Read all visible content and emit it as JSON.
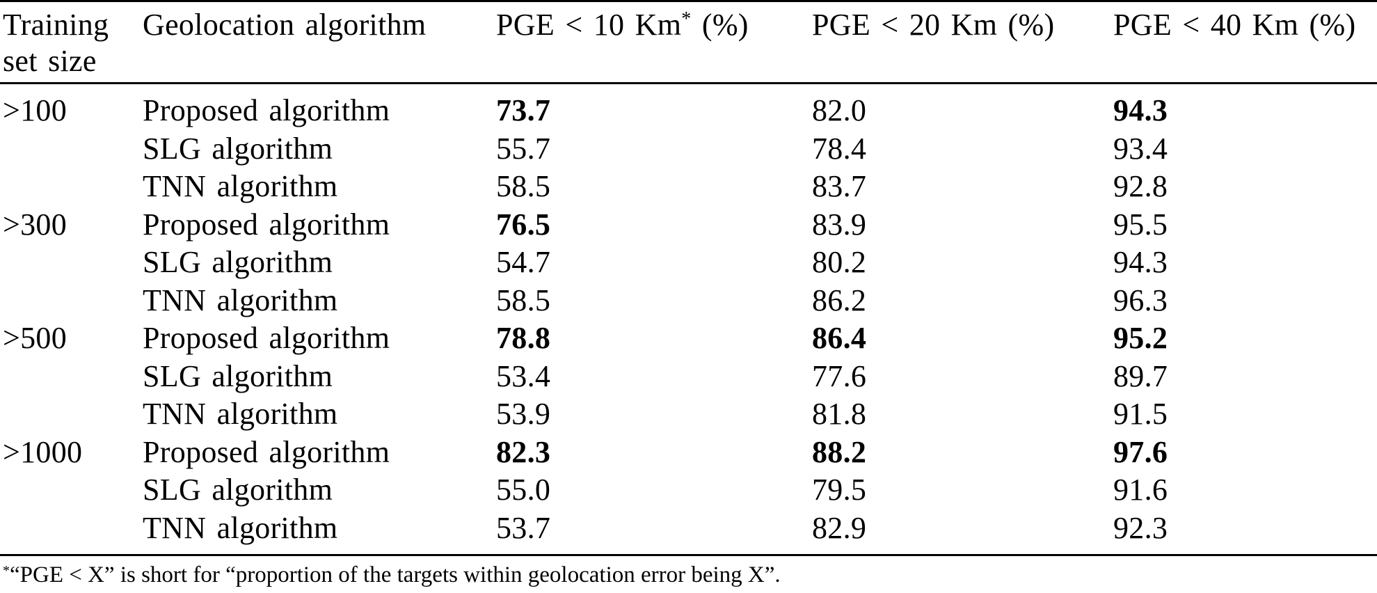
{
  "table": {
    "headers": [
      {
        "lines": [
          "Training",
          "set size"
        ]
      },
      {
        "lines": [
          "Geolocation algorithm"
        ]
      },
      {
        "main": "PGE < 10 Km",
        "sup": "*",
        "tail": " (%)"
      },
      {
        "main": "PGE < 20 Km (%)"
      },
      {
        "main": "PGE < 40 Km (%)"
      }
    ],
    "rows": [
      {
        "size": ">100",
        "algorithm": "Proposed algorithm",
        "v10": "73.7",
        "v20": "82.0",
        "v40": "94.3",
        "bold10": true,
        "bold20": false,
        "bold40": true
      },
      {
        "size": "",
        "algorithm": "SLG algorithm",
        "v10": "55.7",
        "v20": "78.4",
        "v40": "93.4",
        "bold10": false,
        "bold20": false,
        "bold40": false
      },
      {
        "size": "",
        "algorithm": "TNN algorithm",
        "v10": "58.5",
        "v20": "83.7",
        "v40": "92.8",
        "bold10": false,
        "bold20": false,
        "bold40": false
      },
      {
        "size": ">300",
        "algorithm": "Proposed algorithm",
        "v10": "76.5",
        "v20": "83.9",
        "v40": "95.5",
        "bold10": true,
        "bold20": false,
        "bold40": false
      },
      {
        "size": "",
        "algorithm": "SLG algorithm",
        "v10": "54.7",
        "v20": "80.2",
        "v40": "94.3",
        "bold10": false,
        "bold20": false,
        "bold40": false
      },
      {
        "size": "",
        "algorithm": "TNN algorithm",
        "v10": "58.5",
        "v20": "86.2",
        "v40": "96.3",
        "bold10": false,
        "bold20": false,
        "bold40": false
      },
      {
        "size": ">500",
        "algorithm": "Proposed algorithm",
        "v10": "78.8",
        "v20": "86.4",
        "v40": "95.2",
        "bold10": true,
        "bold20": true,
        "bold40": true
      },
      {
        "size": "",
        "algorithm": "SLG algorithm",
        "v10": "53.4",
        "v20": "77.6",
        "v40": "89.7",
        "bold10": false,
        "bold20": false,
        "bold40": false
      },
      {
        "size": "",
        "algorithm": "TNN algorithm",
        "v10": "53.9",
        "v20": "81.8",
        "v40": "91.5",
        "bold10": false,
        "bold20": false,
        "bold40": false
      },
      {
        "size": ">1000",
        "algorithm": "Proposed algorithm",
        "v10": "82.3",
        "v20": "88.2",
        "v40": "97.6",
        "bold10": true,
        "bold20": true,
        "bold40": true
      },
      {
        "size": "",
        "algorithm": "SLG algorithm",
        "v10": "55.0",
        "v20": "79.5",
        "v40": "91.6",
        "bold10": false,
        "bold20": false,
        "bold40": false
      },
      {
        "size": "",
        "algorithm": "TNN algorithm",
        "v10": "53.7",
        "v20": "82.9",
        "v40": "92.3",
        "bold10": false,
        "bold20": false,
        "bold40": false
      }
    ]
  },
  "footnote": {
    "marker": "*",
    "text": "“PGE < X” is short for “proportion of the targets within geolocation error being X”."
  }
}
